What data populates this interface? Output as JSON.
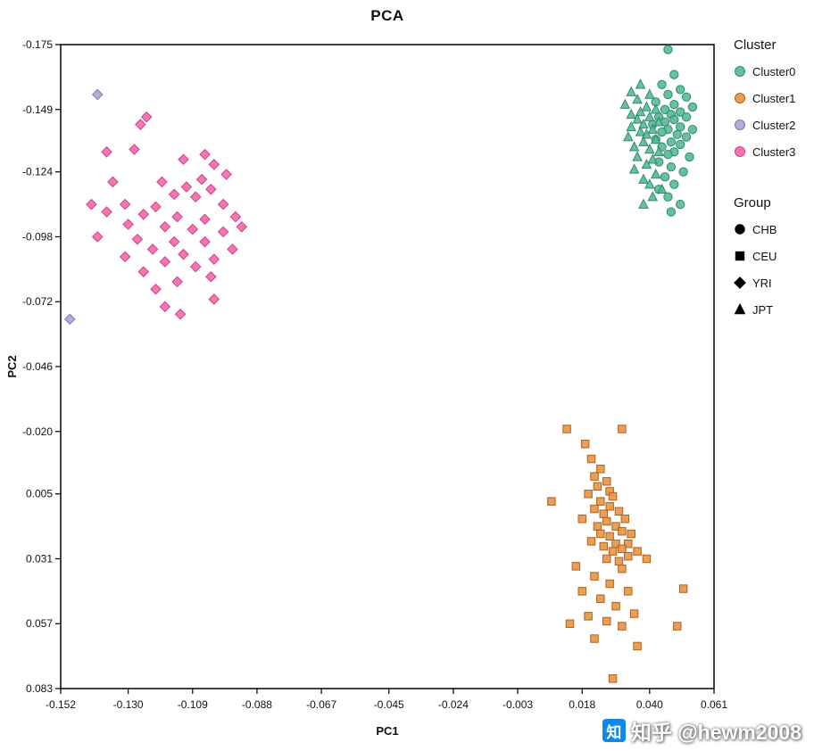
{
  "watermark": {
    "logo_char": "知",
    "text": "知乎 @hewm2008"
  },
  "chart_data": {
    "type": "scatter",
    "title": "PCA",
    "xlabel": "PC1",
    "ylabel": "PC2",
    "xlim": [
      -0.152,
      0.061
    ],
    "ylim": [
      -0.175,
      0.083
    ],
    "y_axis_inverted": true,
    "grid": false,
    "x_ticks": [
      -0.152,
      -0.13,
      -0.109,
      -0.088,
      -0.067,
      -0.045,
      -0.024,
      -0.003,
      0.018,
      0.04,
      0.061
    ],
    "y_ticks": [
      -0.175,
      -0.149,
      -0.124,
      -0.098,
      -0.072,
      -0.046,
      -0.02,
      0.005,
      0.031,
      0.057,
      0.083
    ],
    "legend": {
      "position": "right",
      "cluster_title": "Cluster",
      "clusters": [
        {
          "label": "Cluster0",
          "color": "#53B795",
          "stroke": "#2E8C6C"
        },
        {
          "label": "Cluster1",
          "color": "#E8913E",
          "stroke": "#AD631C"
        },
        {
          "label": "Cluster2",
          "color": "#A8A2D2",
          "stroke": "#7D76B8"
        },
        {
          "label": "Cluster3",
          "color": "#EE67A7",
          "stroke": "#D63C8B"
        }
      ],
      "group_title": "Group",
      "groups": [
        {
          "label": "CHB",
          "marker": "circle"
        },
        {
          "label": "CEU",
          "marker": "square"
        },
        {
          "label": "YRI",
          "marker": "diamond"
        },
        {
          "label": "JPT",
          "marker": "triangle"
        }
      ]
    },
    "series": [
      {
        "cluster": "Cluster0",
        "group": "CHB",
        "marker": "circle",
        "fill": "#53B795",
        "stroke": "#2E8C6C",
        "points": [
          [
            0.046,
            -0.173
          ],
          [
            0.048,
            -0.163
          ],
          [
            0.044,
            -0.159
          ],
          [
            0.05,
            -0.157
          ],
          [
            0.046,
            -0.155
          ],
          [
            0.052,
            -0.154
          ],
          [
            0.042,
            -0.152
          ],
          [
            0.048,
            -0.151
          ],
          [
            0.054,
            -0.15
          ],
          [
            0.045,
            -0.149
          ],
          [
            0.05,
            -0.148
          ],
          [
            0.047,
            -0.147
          ],
          [
            0.043,
            -0.146
          ],
          [
            0.052,
            -0.146
          ],
          [
            0.048,
            -0.145
          ],
          [
            0.045,
            -0.144
          ],
          [
            0.041,
            -0.143
          ],
          [
            0.05,
            -0.142
          ],
          [
            0.054,
            -0.141
          ],
          [
            0.046,
            -0.141
          ],
          [
            0.044,
            -0.14
          ],
          [
            0.049,
            -0.139
          ],
          [
            0.052,
            -0.138
          ],
          [
            0.042,
            -0.137
          ],
          [
            0.047,
            -0.136
          ],
          [
            0.05,
            -0.135
          ],
          [
            0.044,
            -0.134
          ],
          [
            0.048,
            -0.132
          ],
          [
            0.046,
            -0.131
          ],
          [
            0.053,
            -0.13
          ],
          [
            0.043,
            -0.128
          ],
          [
            0.047,
            -0.126
          ],
          [
            0.051,
            -0.124
          ],
          [
            0.045,
            -0.122
          ],
          [
            0.048,
            -0.119
          ],
          [
            0.043,
            -0.117
          ],
          [
            0.046,
            -0.114
          ],
          [
            0.05,
            -0.111
          ],
          [
            0.047,
            -0.108
          ]
        ]
      },
      {
        "cluster": "Cluster0",
        "group": "JPT",
        "marker": "triangle",
        "fill": "#53B795",
        "stroke": "#2E8C6C",
        "points": [
          [
            0.037,
            -0.159
          ],
          [
            0.034,
            -0.156
          ],
          [
            0.04,
            -0.155
          ],
          [
            0.036,
            -0.153
          ],
          [
            0.032,
            -0.151
          ],
          [
            0.039,
            -0.15
          ],
          [
            0.042,
            -0.149
          ],
          [
            0.037,
            -0.148
          ],
          [
            0.034,
            -0.147
          ],
          [
            0.04,
            -0.146
          ],
          [
            0.036,
            -0.145
          ],
          [
            0.043,
            -0.144
          ],
          [
            0.038,
            -0.143
          ],
          [
            0.034,
            -0.142
          ],
          [
            0.041,
            -0.141
          ],
          [
            0.037,
            -0.14
          ],
          [
            0.039,
            -0.139
          ],
          [
            0.033,
            -0.138
          ],
          [
            0.042,
            -0.137
          ],
          [
            0.038,
            -0.136
          ],
          [
            0.035,
            -0.134
          ],
          [
            0.04,
            -0.133
          ],
          [
            0.043,
            -0.132
          ],
          [
            0.036,
            -0.13
          ],
          [
            0.041,
            -0.129
          ],
          [
            0.039,
            -0.127
          ],
          [
            0.035,
            -0.125
          ],
          [
            0.042,
            -0.123
          ],
          [
            0.038,
            -0.121
          ],
          [
            0.04,
            -0.119
          ],
          [
            0.044,
            -0.117
          ],
          [
            0.041,
            -0.114
          ],
          [
            0.038,
            -0.111
          ]
        ]
      },
      {
        "cluster": "Cluster1",
        "group": "CEU",
        "marker": "square",
        "fill": "#E8913E",
        "stroke": "#AD631C",
        "points": [
          [
            0.013,
            -0.021
          ],
          [
            0.019,
            -0.015
          ],
          [
            0.031,
            -0.021
          ],
          [
            0.021,
            -0.009
          ],
          [
            0.024,
            -0.005
          ],
          [
            0.022,
            -0.002
          ],
          [
            0.026,
            0.0
          ],
          [
            0.023,
            0.002
          ],
          [
            0.027,
            0.004
          ],
          [
            0.02,
            0.005
          ],
          [
            0.028,
            0.006
          ],
          [
            0.008,
            0.008
          ],
          [
            0.024,
            0.008
          ],
          [
            0.027,
            0.01
          ],
          [
            0.022,
            0.011
          ],
          [
            0.03,
            0.012
          ],
          [
            0.025,
            0.013
          ],
          [
            0.018,
            0.015
          ],
          [
            0.032,
            0.015
          ],
          [
            0.026,
            0.016
          ],
          [
            0.023,
            0.018
          ],
          [
            0.029,
            0.018
          ],
          [
            0.031,
            0.02
          ],
          [
            0.024,
            0.021
          ],
          [
            0.034,
            0.021
          ],
          [
            0.027,
            0.022
          ],
          [
            0.021,
            0.024
          ],
          [
            0.029,
            0.025
          ],
          [
            0.033,
            0.025
          ],
          [
            0.025,
            0.026
          ],
          [
            0.031,
            0.027
          ],
          [
            0.036,
            0.028
          ],
          [
            0.028,
            0.028
          ],
          [
            0.033,
            0.03
          ],
          [
            0.026,
            0.031
          ],
          [
            0.039,
            0.031
          ],
          [
            0.03,
            0.032
          ],
          [
            0.016,
            0.034
          ],
          [
            0.031,
            0.035
          ],
          [
            0.022,
            0.038
          ],
          [
            0.027,
            0.041
          ],
          [
            0.018,
            0.044
          ],
          [
            0.033,
            0.044
          ],
          [
            0.051,
            0.043
          ],
          [
            0.024,
            0.047
          ],
          [
            0.029,
            0.05
          ],
          [
            0.02,
            0.054
          ],
          [
            0.035,
            0.053
          ],
          [
            0.026,
            0.056
          ],
          [
            0.049,
            0.058
          ],
          [
            0.014,
            0.057
          ],
          [
            0.031,
            0.058
          ],
          [
            0.022,
            0.063
          ],
          [
            0.036,
            0.066
          ],
          [
            0.028,
            0.079
          ]
        ]
      },
      {
        "cluster": "Cluster2",
        "group": "YRI",
        "marker": "diamond",
        "fill": "#A8A2D2",
        "stroke": "#7D76B8",
        "points": [
          [
            -0.14,
            -0.155
          ],
          [
            -0.149,
            -0.065
          ]
        ]
      },
      {
        "cluster": "Cluster3",
        "group": "YRI",
        "marker": "diamond",
        "fill": "#EE67A7",
        "stroke": "#D63C8B",
        "points": [
          [
            -0.124,
            -0.146
          ],
          [
            -0.126,
            -0.143
          ],
          [
            -0.137,
            -0.132
          ],
          [
            -0.128,
            -0.133
          ],
          [
            -0.105,
            -0.131
          ],
          [
            -0.112,
            -0.129
          ],
          [
            -0.102,
            -0.127
          ],
          [
            -0.098,
            -0.123
          ],
          [
            -0.106,
            -0.121
          ],
          [
            -0.119,
            -0.12
          ],
          [
            -0.135,
            -0.12
          ],
          [
            -0.111,
            -0.118
          ],
          [
            -0.103,
            -0.117
          ],
          [
            -0.115,
            -0.115
          ],
          [
            -0.108,
            -0.114
          ],
          [
            -0.142,
            -0.111
          ],
          [
            -0.131,
            -0.111
          ],
          [
            -0.121,
            -0.11
          ],
          [
            -0.099,
            -0.111
          ],
          [
            -0.137,
            -0.108
          ],
          [
            -0.125,
            -0.107
          ],
          [
            -0.114,
            -0.106
          ],
          [
            -0.105,
            -0.105
          ],
          [
            -0.095,
            -0.106
          ],
          [
            -0.13,
            -0.103
          ],
          [
            -0.118,
            -0.102
          ],
          [
            -0.109,
            -0.101
          ],
          [
            -0.099,
            -0.1
          ],
          [
            -0.093,
            -0.102
          ],
          [
            -0.14,
            -0.098
          ],
          [
            -0.127,
            -0.097
          ],
          [
            -0.115,
            -0.096
          ],
          [
            -0.105,
            -0.096
          ],
          [
            -0.122,
            -0.093
          ],
          [
            -0.112,
            -0.091
          ],
          [
            -0.131,
            -0.09
          ],
          [
            -0.102,
            -0.089
          ],
          [
            -0.118,
            -0.088
          ],
          [
            -0.108,
            -0.086
          ],
          [
            -0.125,
            -0.084
          ],
          [
            -0.103,
            -0.082
          ],
          [
            -0.114,
            -0.08
          ],
          [
            -0.096,
            -0.093
          ],
          [
            -0.121,
            -0.077
          ],
          [
            -0.102,
            -0.073
          ],
          [
            -0.118,
            -0.07
          ],
          [
            -0.113,
            -0.067
          ]
        ]
      }
    ]
  }
}
